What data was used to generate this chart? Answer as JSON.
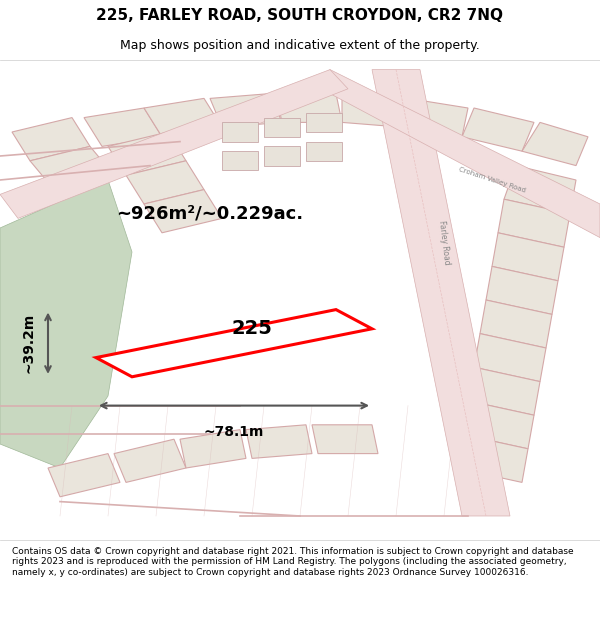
{
  "title_line1": "225, FARLEY ROAD, SOUTH CROYDON, CR2 7NQ",
  "title_line2": "Map shows position and indicative extent of the property.",
  "area_text": "~926m²/~0.229ac.",
  "number_text": "225",
  "width_text": "~78.1m",
  "height_text": "~39.2m",
  "footer_text": "Contains OS data © Crown copyright and database right 2021. This information is subject to Crown copyright and database rights 2023 and is reproduced with the permission of HM Land Registry. The polygons (including the associated geometry, namely x, y co-ordinates) are subject to Crown copyright and database rights 2023 Ordnance Survey 100026316.",
  "bg_color": "#f5f5f0",
  "map_bg": "#f9f9f6",
  "road_color": "#e8c8c8",
  "road_fill": "#f0d8d8",
  "highlight_color": "#ff0000",
  "highlight_fill": "white",
  "dim_line_color": "#555555",
  "green_area_color": "#c8dcc8",
  "building_fill": "#e8e0d8",
  "building_edge": "#d0a8a8"
}
